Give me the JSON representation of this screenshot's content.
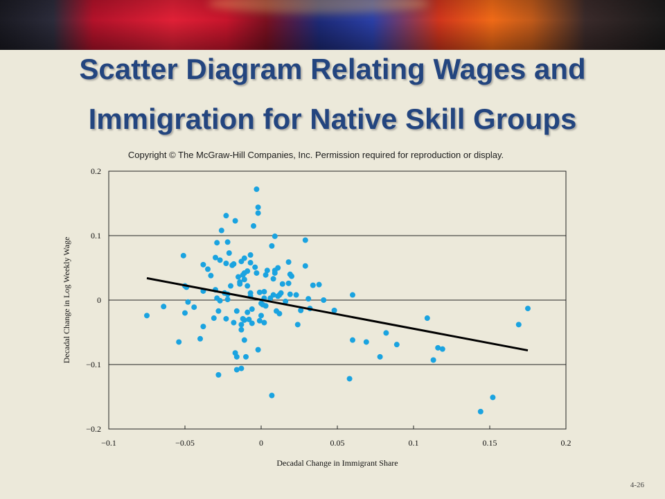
{
  "slide": {
    "title_line1": "Scatter Diagram Relating Wages and",
    "title_line2": "Immigration for Native Skill Groups",
    "copyright": "Copyright © The McGraw-Hill Companies, Inc. Permission required for reproduction or display.",
    "slide_number": "4-26"
  },
  "chart_data": {
    "type": "scatter",
    "title": "",
    "xlabel": "Decadal Change in Immigrant Share",
    "ylabel": "Decadal Change in Log Weekly Wage",
    "xlim": [
      -0.1,
      0.2
    ],
    "ylim": [
      -0.2,
      0.2
    ],
    "x_ticks": [
      -0.1,
      -0.05,
      0,
      0.05,
      0.1,
      0.15,
      0.2
    ],
    "x_tick_labels": [
      "−0.1",
      "−0.05",
      "0",
      "0.05",
      "0.1",
      "0.15",
      "0.2"
    ],
    "y_ticks": [
      0.2,
      0.1,
      0,
      -0.1,
      -0.2
    ],
    "y_tick_labels": [
      "0.2",
      "0.1",
      "0",
      "−0.1",
      "−0.2"
    ],
    "horizontal_gridlines": true,
    "point_color": "#1AA3E0",
    "line_color": "#000000",
    "fit_line": {
      "x": [
        -0.075,
        0.175
      ],
      "y": [
        0.034,
        -0.078
      ]
    },
    "points": [
      [
        -0.075,
        -0.024
      ],
      [
        -0.064,
        -0.01
      ],
      [
        -0.054,
        -0.065
      ],
      [
        -0.051,
        0.069
      ],
      [
        -0.05,
        0.022
      ],
      [
        -0.05,
        -0.02
      ],
      [
        -0.049,
        0.02
      ],
      [
        -0.048,
        -0.003
      ],
      [
        -0.044,
        -0.011
      ],
      [
        -0.04,
        -0.06
      ],
      [
        -0.038,
        0.055
      ],
      [
        -0.038,
        0.014
      ],
      [
        -0.038,
        -0.041
      ],
      [
        -0.035,
        0.048
      ],
      [
        -0.033,
        0.038
      ],
      [
        -0.031,
        -0.028
      ],
      [
        -0.03,
        0.066
      ],
      [
        -0.03,
        0.016
      ],
      [
        -0.029,
        0.089
      ],
      [
        -0.029,
        0.003
      ],
      [
        -0.028,
        -0.017
      ],
      [
        -0.028,
        -0.116
      ],
      [
        -0.027,
        0.062
      ],
      [
        -0.027,
        -0.001
      ],
      [
        -0.026,
        0.108
      ],
      [
        -0.024,
        0.011
      ],
      [
        -0.023,
        0.131
      ],
      [
        -0.023,
        0.057
      ],
      [
        -0.023,
        -0.029
      ],
      [
        -0.022,
        0.09
      ],
      [
        -0.022,
        0.009
      ],
      [
        -0.022,
        0.001
      ],
      [
        -0.021,
        0.073
      ],
      [
        -0.02,
        0.022
      ],
      [
        -0.019,
        0.054
      ],
      [
        -0.018,
        0.056
      ],
      [
        -0.018,
        -0.035
      ],
      [
        -0.017,
        -0.082
      ],
      [
        -0.017,
        0.123
      ],
      [
        -0.016,
        -0.108
      ],
      [
        -0.016,
        -0.017
      ],
      [
        -0.016,
        -0.088
      ],
      [
        -0.015,
        0.036
      ],
      [
        -0.014,
        0.028
      ],
      [
        -0.014,
        0.025
      ],
      [
        -0.013,
        0.06
      ],
      [
        -0.013,
        -0.038
      ],
      [
        -0.013,
        -0.046
      ],
      [
        -0.013,
        -0.106
      ],
      [
        -0.012,
        0.039
      ],
      [
        -0.012,
        -0.029
      ],
      [
        -0.011,
        0.065
      ],
      [
        -0.011,
        0.032
      ],
      [
        -0.011,
        0.042
      ],
      [
        -0.011,
        -0.031
      ],
      [
        -0.011,
        -0.062
      ],
      [
        -0.01,
        -0.088
      ],
      [
        -0.009,
        0.045
      ],
      [
        -0.009,
        0.022
      ],
      [
        -0.009,
        -0.019
      ],
      [
        -0.008,
        -0.03
      ],
      [
        -0.007,
        0.07
      ],
      [
        -0.007,
        0.058
      ],
      [
        -0.007,
        0.011
      ],
      [
        -0.007,
        0.006
      ],
      [
        -0.006,
        -0.014
      ],
      [
        -0.006,
        -0.036
      ],
      [
        -0.005,
        0.115
      ],
      [
        -0.004,
        0.051
      ],
      [
        -0.003,
        0.172
      ],
      [
        -0.003,
        0.042
      ],
      [
        -0.002,
        0.144
      ],
      [
        -0.002,
        0.135
      ],
      [
        -0.002,
        -0.077
      ],
      [
        -0.001,
        0.012
      ],
      [
        -0.001,
        -0.032
      ],
      [
        0.0,
        -0.005
      ],
      [
        0.0,
        -0.024
      ],
      [
        0.001,
        -0.007
      ],
      [
        0.002,
        -0.035
      ],
      [
        0.002,
        0.003
      ],
      [
        0.002,
        0.013
      ],
      [
        0.003,
        -0.009
      ],
      [
        0.003,
        0.039
      ],
      [
        0.004,
        0.046
      ],
      [
        0.006,
        0.003
      ],
      [
        0.007,
        -0.148
      ],
      [
        0.007,
        0.084
      ],
      [
        0.008,
        0.033
      ],
      [
        0.008,
        0.008
      ],
      [
        0.009,
        0.042
      ],
      [
        0.009,
        0.046
      ],
      [
        0.009,
        0.099
      ],
      [
        0.01,
        -0.017
      ],
      [
        0.011,
        0.006
      ],
      [
        0.011,
        0.05
      ],
      [
        0.012,
        -0.021
      ],
      [
        0.012,
        0.008
      ],
      [
        0.013,
        0.011
      ],
      [
        0.014,
        0.025
      ],
      [
        0.016,
        -0.002
      ],
      [
        0.018,
        0.026
      ],
      [
        0.018,
        0.059
      ],
      [
        0.019,
        0.04
      ],
      [
        0.019,
        0.009
      ],
      [
        0.02,
        0.037
      ],
      [
        0.023,
        0.008
      ],
      [
        0.024,
        -0.038
      ],
      [
        0.026,
        -0.016
      ],
      [
        0.029,
        0.093
      ],
      [
        0.029,
        0.053
      ],
      [
        0.031,
        0.002
      ],
      [
        0.032,
        -0.013
      ],
      [
        0.034,
        0.023
      ],
      [
        0.038,
        0.024
      ],
      [
        0.041,
        0.0
      ],
      [
        0.048,
        -0.016
      ],
      [
        0.058,
        -0.122
      ],
      [
        0.06,
        -0.062
      ],
      [
        0.06,
        0.008
      ],
      [
        0.069,
        -0.065
      ],
      [
        0.078,
        -0.088
      ],
      [
        0.082,
        -0.051
      ],
      [
        0.089,
        -0.069
      ],
      [
        0.109,
        -0.028
      ],
      [
        0.113,
        -0.093
      ],
      [
        0.116,
        -0.074
      ],
      [
        0.119,
        -0.076
      ],
      [
        0.144,
        -0.173
      ],
      [
        0.152,
        -0.151
      ],
      [
        0.169,
        -0.038
      ],
      [
        0.175,
        -0.013
      ]
    ]
  }
}
